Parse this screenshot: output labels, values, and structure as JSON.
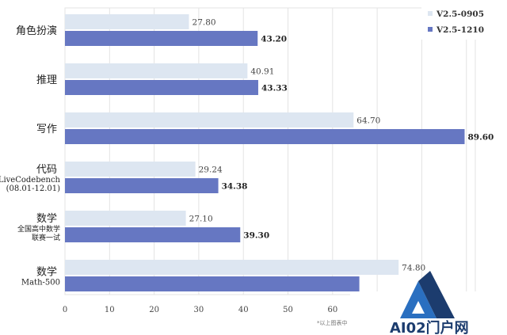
{
  "chart_data": {
    "type": "bar",
    "orientation": "horizontal",
    "categories": [
      {
        "label": "角色扮演",
        "sublabel": []
      },
      {
        "label": "推理",
        "sublabel": []
      },
      {
        "label": "写作",
        "sublabel": []
      },
      {
        "label": "代码",
        "sublabel": [
          "LiveCodebench",
          "(08.01-12.01)"
        ]
      },
      {
        "label": "数学",
        "sublabel": [
          "全国高中数学",
          "联赛一试"
        ]
      },
      {
        "label": "数学",
        "sublabel": [
          "Math-500"
        ]
      }
    ],
    "series": [
      {
        "name": "V2.5-0905",
        "color": "#dde6f1",
        "values": [
          27.8,
          40.91,
          64.7,
          29.24,
          27.1,
          74.8
        ],
        "labels": [
          "27.80",
          "40.91",
          "64.70",
          "29.24",
          "27.10",
          "74.80"
        ]
      },
      {
        "name": "V2.5-1210",
        "color": "#6677c2",
        "values": [
          43.2,
          43.33,
          89.6,
          34.38,
          39.3,
          66.0
        ],
        "labels": [
          "43.20",
          "43.33",
          "89.60",
          "34.38",
          "39.30",
          ""
        ]
      }
    ],
    "xticks": [
      0,
      10,
      20,
      30,
      40,
      50,
      60
    ],
    "xlim": [
      0,
      92
    ],
    "grid": true,
    "legend_position": "top-right",
    "footnote": "*以上图表中"
  },
  "watermark": {
    "text": "AI02门户网",
    "color": "#1c3c6e"
  }
}
